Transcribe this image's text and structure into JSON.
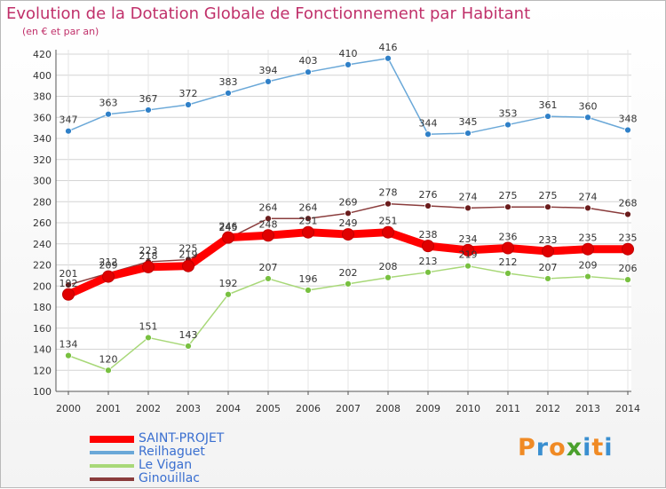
{
  "title": "Evolution de la Dotation Globale de Fonctionnement par Habitant",
  "subtitle": "(en € et par an)",
  "brand": {
    "letters": [
      "P",
      "r",
      "o",
      "x",
      "i",
      "t",
      "i"
    ],
    "letter_colors": [
      "#f08a24",
      "#3a8fd0",
      "#f08a24",
      "#4aa02c",
      "#3a8fd0",
      "#f08a24",
      "#3a8fd0"
    ]
  },
  "chart_data": {
    "type": "line",
    "title": "Evolution de la Dotation Globale de Fonctionnement par Habitant",
    "ylabel": "(en € et par an)",
    "xlabel": "",
    "categories": [
      "2000",
      "2001",
      "2002",
      "2003",
      "2004",
      "2005",
      "2006",
      "2007",
      "2008",
      "2009",
      "2010",
      "2011",
      "2012",
      "2013",
      "2014"
    ],
    "ylim": [
      100,
      420
    ],
    "yticks": [
      100,
      120,
      140,
      160,
      180,
      200,
      220,
      240,
      260,
      280,
      300,
      320,
      340,
      360,
      380,
      400,
      420
    ],
    "grid": true,
    "series": [
      {
        "name": "Reilhaguet",
        "color": "#6aa8d8",
        "marker": "#2f80c8",
        "values": [
          347,
          363,
          367,
          372,
          383,
          394,
          403,
          410,
          416,
          344,
          345,
          353,
          361,
          360,
          348
        ]
      },
      {
        "name": "Le Vigan",
        "color": "#a8d878",
        "marker": "#78c040",
        "values": [
          134,
          120,
          151,
          143,
          192,
          207,
          196,
          202,
          208,
          213,
          219,
          212,
          207,
          209,
          206
        ]
      },
      {
        "name": "Ginouillac",
        "color": "#8a3c3c",
        "marker": "#6a1c1c",
        "values": [
          201,
          212,
          223,
          225,
          245,
          264,
          264,
          269,
          278,
          276,
          274,
          275,
          275,
          274,
          268
        ]
      },
      {
        "name": "SAINT-PROJET",
        "color": "#ff0000",
        "marker": "#e00000",
        "values": [
          192,
          209,
          218,
          219,
          246,
          248,
          251,
          249,
          251,
          238,
          234,
          236,
          233,
          235,
          235
        ]
      }
    ],
    "legend": [
      {
        "name": "SAINT-PROJET",
        "color": "#ff0000"
      },
      {
        "name": "Reilhaguet",
        "color": "#6aa8d8"
      },
      {
        "name": "Le Vigan",
        "color": "#a8d878"
      },
      {
        "name": "Ginouillac",
        "color": "#8a3c3c"
      }
    ]
  }
}
